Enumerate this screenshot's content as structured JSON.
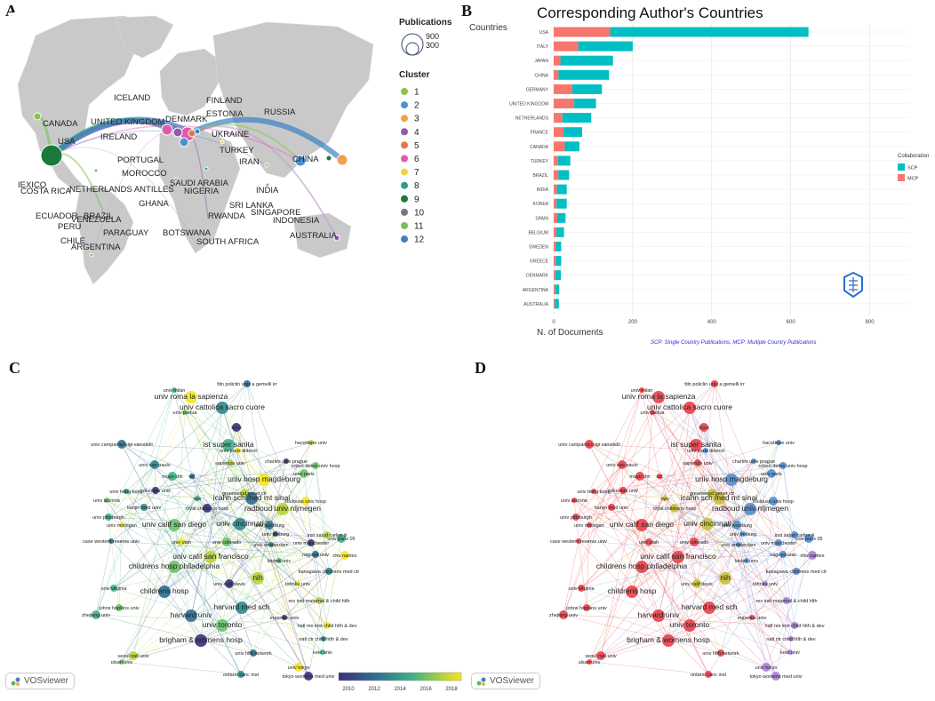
{
  "panels": {
    "a": "A",
    "b": "B",
    "c": "C",
    "d": "D"
  },
  "map": {
    "legend_publications_title": "Publications",
    "legend_sizes": [
      "900",
      "300"
    ],
    "legend_cluster_title": "Cluster",
    "clusters": [
      {
        "label": "1",
        "color": "#8bc34a"
      },
      {
        "label": "2",
        "color": "#4f8fd1"
      },
      {
        "label": "3",
        "color": "#f0a050"
      },
      {
        "label": "4",
        "color": "#8e5ca8"
      },
      {
        "label": "5",
        "color": "#e8734d"
      },
      {
        "label": "6",
        "color": "#e05ba8"
      },
      {
        "label": "7",
        "color": "#f3d23c"
      },
      {
        "label": "8",
        "color": "#2a9d8f"
      },
      {
        "label": "9",
        "color": "#1a7a3c"
      },
      {
        "label": "10",
        "color": "#777777"
      },
      {
        "label": "11",
        "color": "#7cbf5a"
      },
      {
        "label": "12",
        "color": "#3b82c4"
      }
    ],
    "countries": [
      "ICELAND",
      "FINLAND",
      "CANADA",
      "UNITED KINGDOM",
      "DENMARK",
      "ESTONIA",
      "RUSSIA",
      "IRELAND",
      "UKRAINE",
      "USA",
      "TURKEY",
      "PORTUGAL",
      "IRAN",
      "CHINA",
      "MOROCCO",
      "IEXICO",
      "COSTA RICA",
      "NETHERLANDS ANTILLES",
      "SAUDI ARABIA",
      "NIGERIA",
      "INDIA",
      "GHANA",
      "SRI LANKA",
      "ECUADOR",
      "VENEZUELA",
      "SINGAPORE",
      "PERU",
      "BRAZIL",
      "RWANDA",
      "INDONESIA",
      "PARAGUAY",
      "BOTSWANA",
      "CHILE",
      "ARGENTINA",
      "SOUTH AFRICA",
      "AUSTRALIA"
    ]
  },
  "chart_data": {
    "type": "bar",
    "title": "Corresponding Author's Countries",
    "ylabel": "Countries",
    "xlabel": "N. of Documents",
    "xlim": [
      0,
      900
    ],
    "xticks": [
      0,
      200,
      400,
      600,
      800
    ],
    "categories": [
      "USA",
      "ITALY",
      "JAPAN",
      "CHINA",
      "GERMANY",
      "UNITED KINGDOM",
      "NETHERLANDS",
      "FRANCE",
      "CANADA",
      "TURKEY",
      "BRAZIL",
      "INDIA",
      "KOREA",
      "SPAIN",
      "BELGIUM",
      "SWEDEN",
      "GREECE",
      "DENMARK",
      "ARGENTINA",
      "AUSTRALIA"
    ],
    "series": [
      {
        "name": "MCP",
        "color": "#f8766d",
        "values": [
          143,
          62,
          17,
          12,
          47,
          52,
          22,
          25,
          28,
          11,
          12,
          8,
          7,
          9,
          7,
          5,
          5,
          4,
          4,
          3
        ]
      },
      {
        "name": "SCP",
        "color": "#00bfc4",
        "values": [
          502,
          138,
          133,
          128,
          75,
          55,
          73,
          47,
          37,
          31,
          27,
          25,
          26,
          21,
          19,
          14,
          14,
          14,
          10,
          10
        ]
      }
    ],
    "legend_title": "Collaboration",
    "legend": [
      {
        "name": "SCP",
        "color": "#00bfc4"
      },
      {
        "name": "MCP",
        "color": "#f8766d"
      }
    ],
    "footnote": "SCP: Single Country Publications, MCP: Multiple Country Publications"
  },
  "network": {
    "labels": [
      "univ milan",
      "fdn policlin univ a gemelli irr",
      "univ roma la sapienza",
      "univ padua",
      "univ cattolica sacro cuore",
      "irccs",
      "hacettepe univ",
      "ist super sanita",
      "univ campania luigi vanvitelli",
      "univ paris diderot",
      "robert debre univ hosp",
      "univ sao paulo",
      "charles univ prague",
      "sapienza univ",
      "mayo clin",
      "ucl",
      "univ hosp magdeburg",
      "univ paris",
      "univ hong kong",
      "columbia univ",
      "greenwood genet ctr",
      "nyu",
      "icahn sch med mt sinai",
      "toulouse univ hosp",
      "univ arizona",
      "tianjin med univ",
      "royal childrens hosp",
      "radboud univ nijmegen",
      "univ pittsburgh",
      "univ wurzburg",
      "univ michigan",
      "univ calif san diego",
      "univ cincinnati",
      "univ freiburg",
      "inst salud carlos iii",
      "univ paris 05",
      "case western reserve univ",
      "univ utah",
      "univ colorado",
      "univ amsterdam",
      "univ manchester",
      "univ calif san francisco",
      "leiden univ",
      "nagoya univ",
      "chu nantes",
      "childrens hosp philadelphia",
      "kanagawa childrens med ctr",
      "univ calif davis",
      "nih",
      "univ virginia",
      "childrens hosp",
      "tohoku univ",
      "johns hopkins univ",
      "harvard med sch",
      "erasmus univ",
      "res inst maternal & child hlth",
      "zhejiang univ",
      "harvard univ",
      "natl res inst child hlth & dev",
      "univ toronto",
      "natl ctr child hlth & dev",
      "brigham & womens hosp",
      "seoul natl univ",
      "keio univ",
      "univ hlth network",
      "univ tokyo",
      "ulsan univ",
      "ontario canc inst",
      "tokyo womens med univ"
    ],
    "colorbar_ticks": [
      "2010",
      "2012",
      "2014",
      "2016",
      "2018"
    ],
    "vosviewer_label": "VOSviewer"
  }
}
